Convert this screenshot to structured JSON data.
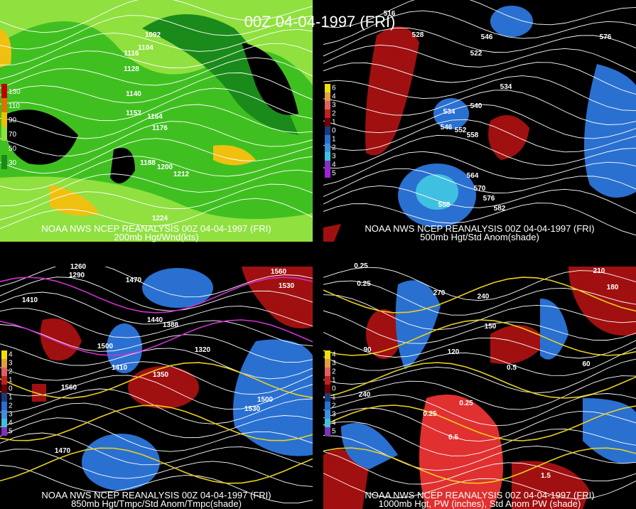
{
  "title": "00Z 04-04-1997 (FRI)",
  "panels": [
    {
      "source": "NOAA NWS NCEP REANALYSIS 00Z 04-04-1997 (FRI)",
      "caption": "200mb Hgt/Wnd(kts)",
      "colorbar": [
        "130",
        "110",
        "90",
        "70",
        "50",
        "30"
      ],
      "contour_labels": [
        "1092",
        "1104",
        "1116",
        "1128",
        "1140",
        "1152",
        "1164",
        "1176",
        "1188",
        "1200",
        "1212",
        "1224"
      ]
    },
    {
      "source": "NOAA NWS NCEP REANALYSIS 00Z 04-04-1997 (FRI)",
      "caption": "500mb Hgt/Std Anom(shade)",
      "colorbar": [
        "6",
        "4",
        "3",
        "2",
        "1",
        "0",
        "1",
        "2",
        "3",
        "4",
        "5"
      ],
      "contour_labels": [
        "516",
        "528",
        "546",
        "522",
        "576",
        "534",
        "540",
        "534",
        "546",
        "552",
        "558",
        "564",
        "570",
        "576",
        "582",
        "558"
      ]
    },
    {
      "source": "NOAA NWS NCEP REANALYSIS 00Z 04-04-1997 (FRI)",
      "caption": "850mb Hgt/Tmpc/Std Anom/Tmpc(shade)",
      "colorbar": [
        "4",
        "3",
        "2",
        "1",
        "0",
        "1",
        "2",
        "3",
        "4",
        "5"
      ],
      "contour_labels": [
        "1260",
        "1290",
        "1410",
        "1470",
        "1440",
        "1388",
        "1320",
        "1500",
        "1410",
        "1350",
        "1560",
        "1560",
        "1530",
        "1500",
        "1530",
        "1470"
      ]
    },
    {
      "source": "NOAA NWS NCEP REANALYSIS 00Z 04-04-1997 (FRI)",
      "caption": "1000mb Hgt, PW (inches), Std Anom PW (shade)",
      "colorbar": [
        "4",
        "3",
        "2",
        "1",
        "0",
        "1",
        "2",
        "3",
        "4",
        "5"
      ],
      "contour_labels": [
        "0.25",
        "0.25",
        "210",
        "180",
        "270",
        "240",
        "150",
        "120",
        "90",
        "60",
        "0.5",
        "240",
        "0.25",
        "0.25",
        "0.5",
        "1.5"
      ]
    }
  ]
}
